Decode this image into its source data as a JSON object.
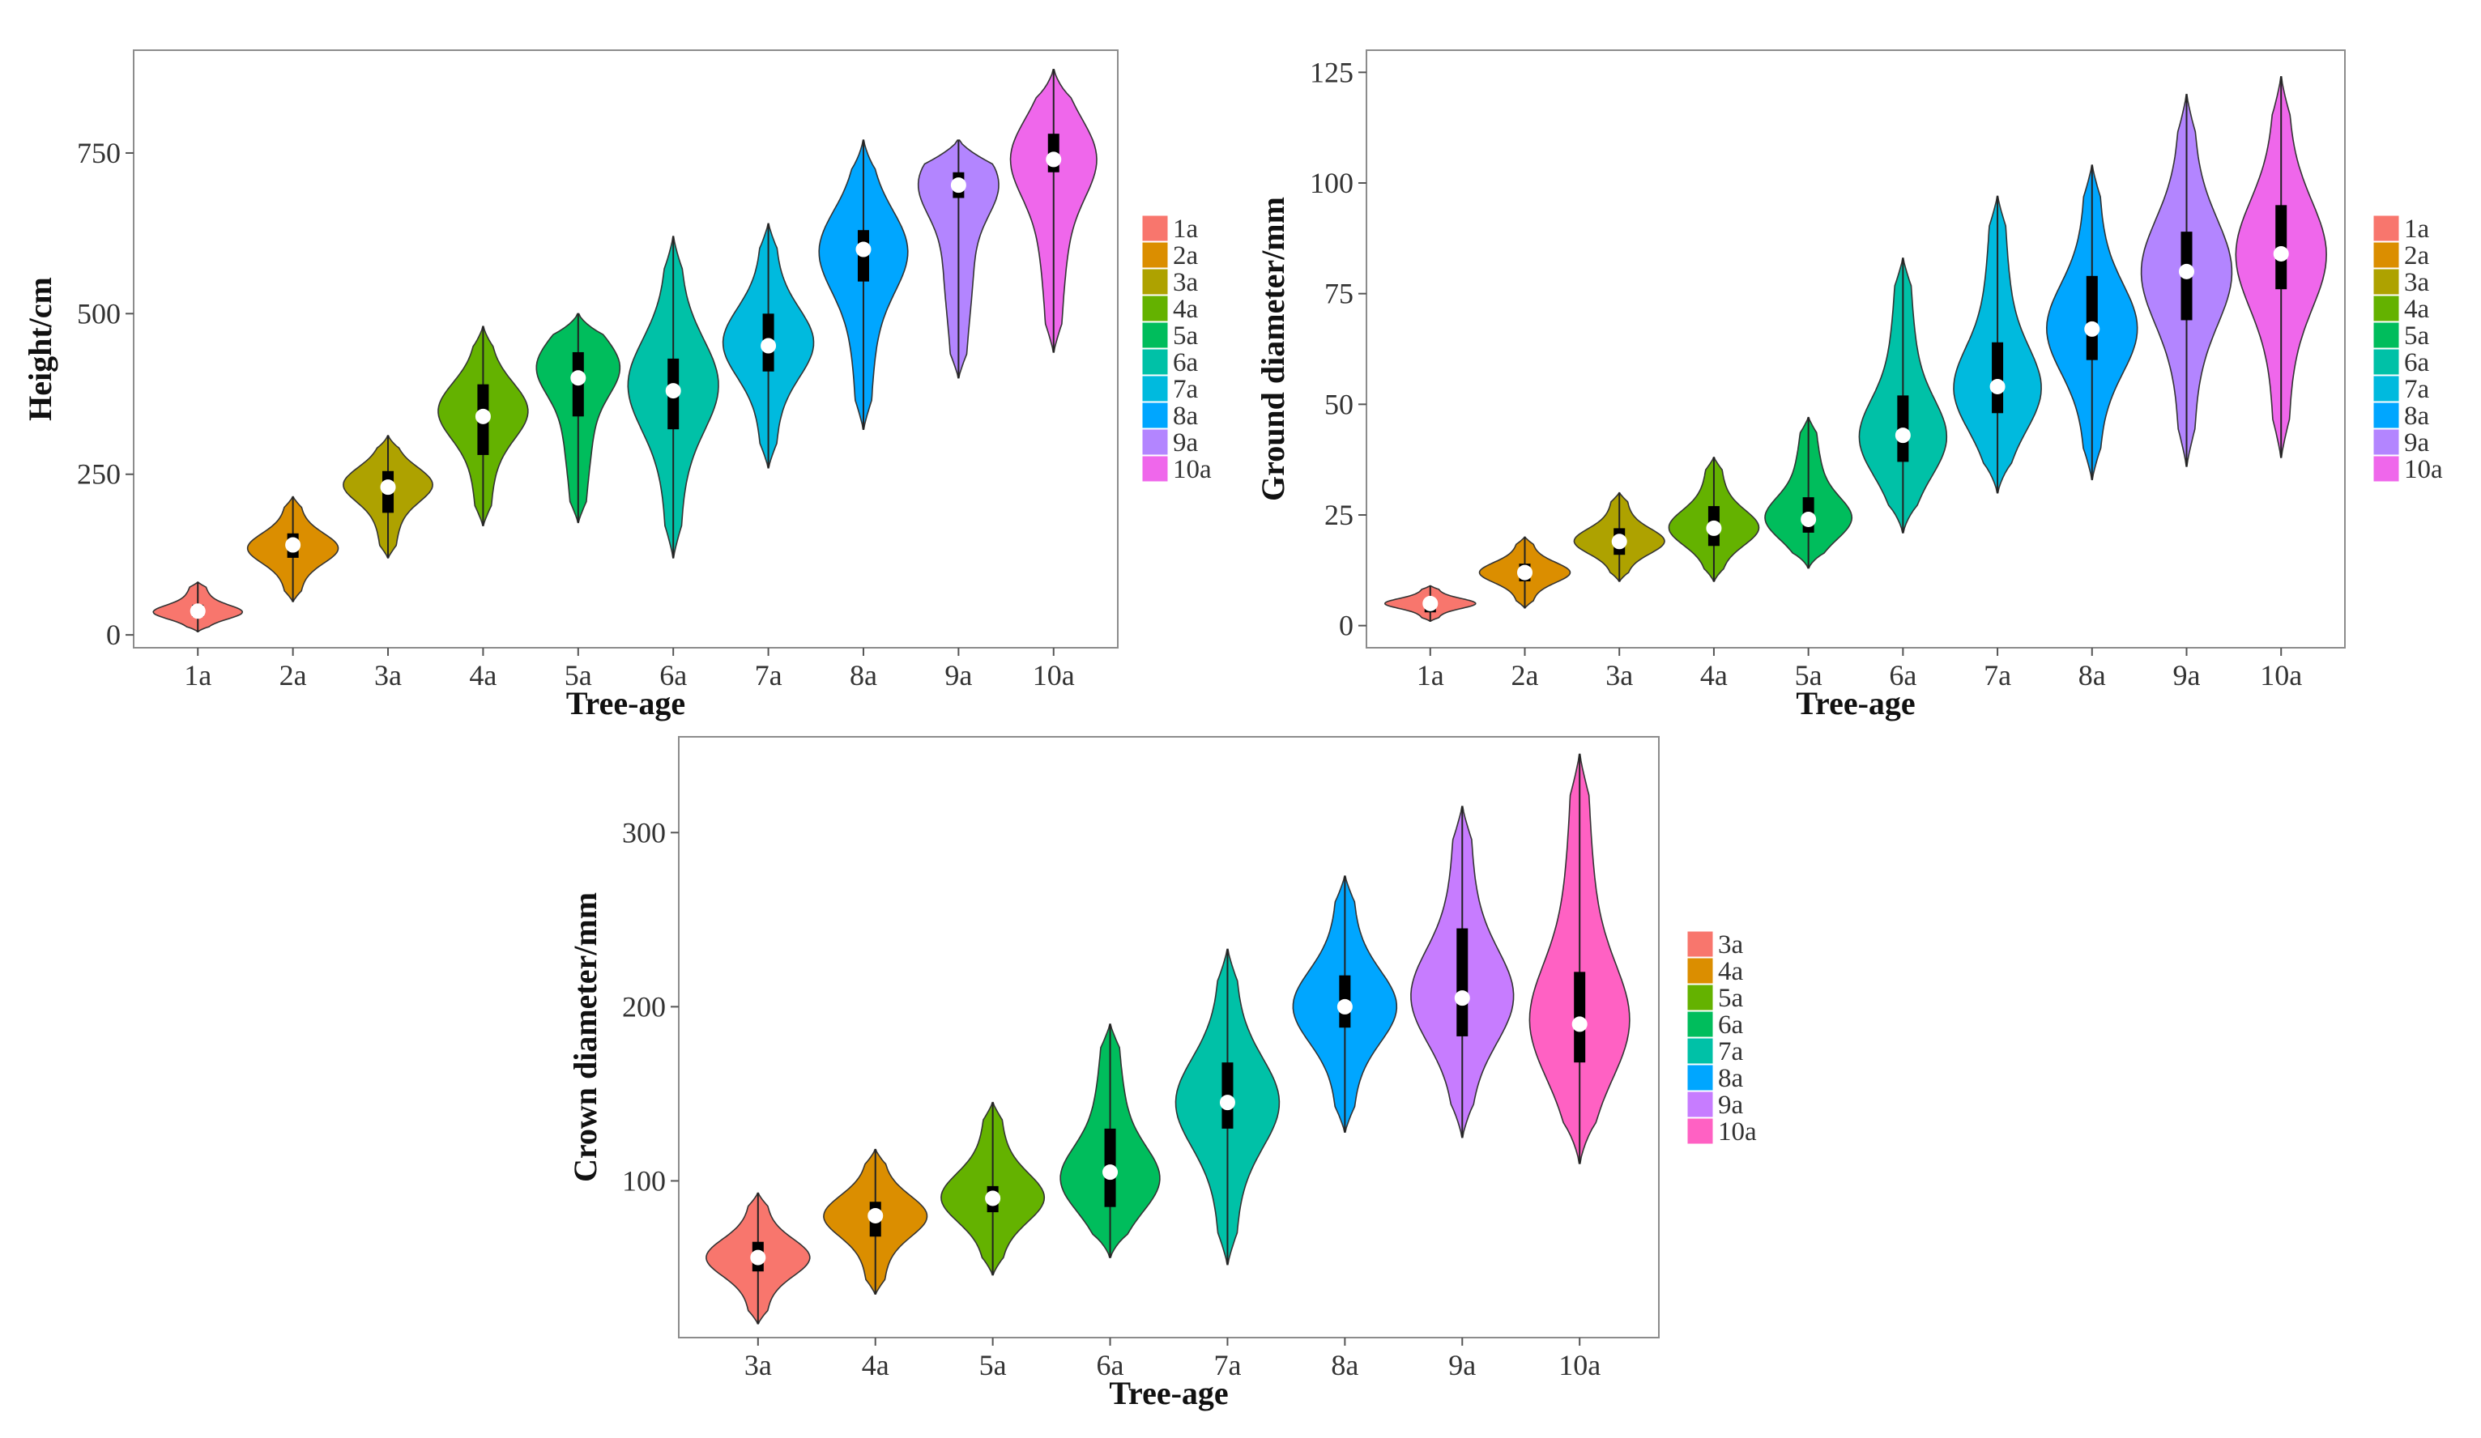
{
  "chart_data": [
    {
      "type": "violin",
      "xlabel": "Tree-age",
      "ylabel": "Height/cm",
      "ylim": [
        -20,
        910
      ],
      "yticks": [
        0,
        250,
        500,
        750
      ],
      "legend": "right",
      "series": [
        {
          "name": "1a",
          "color": "#F8766D",
          "min": 5,
          "max": 82,
          "q1": 28,
          "median": 37,
          "q3": 47,
          "mode": 35
        },
        {
          "name": "2a",
          "color": "#DB8E00",
          "min": 52,
          "max": 215,
          "q1": 120,
          "median": 140,
          "q3": 158,
          "mode": 135
        },
        {
          "name": "3a",
          "color": "#AEA200",
          "min": 120,
          "max": 310,
          "q1": 190,
          "median": 230,
          "q3": 255,
          "mode": 235
        },
        {
          "name": "4a",
          "color": "#64B200",
          "min": 170,
          "max": 480,
          "q1": 280,
          "median": 340,
          "q3": 390,
          "mode": 350
        },
        {
          "name": "5a",
          "color": "#00BD5C",
          "min": 175,
          "max": 500,
          "q1": 340,
          "median": 400,
          "q3": 440,
          "mode": 420
        },
        {
          "name": "6a",
          "color": "#00C1A7",
          "min": 120,
          "max": 620,
          "q1": 320,
          "median": 380,
          "q3": 430,
          "mode": 390
        },
        {
          "name": "7a",
          "color": "#00BADE",
          "min": 260,
          "max": 640,
          "q1": 410,
          "median": 450,
          "q3": 500,
          "mode": 455
        },
        {
          "name": "8a",
          "color": "#00A6FF",
          "min": 320,
          "max": 770,
          "q1": 550,
          "median": 600,
          "q3": 630,
          "mode": 600
        },
        {
          "name": "9a",
          "color": "#B385FF",
          "min": 400,
          "max": 770,
          "q1": 680,
          "median": 700,
          "q3": 720,
          "mode": 705
        },
        {
          "name": "10a",
          "color": "#EF67EB",
          "min": 440,
          "max": 880,
          "q1": 720,
          "median": 740,
          "q3": 780,
          "mode": 745
        }
      ]
    },
    {
      "type": "violin",
      "xlabel": "Tree-age",
      "ylabel": "Ground diameter/mm",
      "ylim": [
        -5,
        130
      ],
      "yticks": [
        0,
        25,
        50,
        75,
        100,
        125
      ],
      "legend": "right",
      "series": [
        {
          "name": "1a",
          "color": "#F8766D",
          "min": 1,
          "max": 9,
          "q1": 3,
          "median": 5,
          "q3": 6,
          "mode": 5
        },
        {
          "name": "2a",
          "color": "#DB8E00",
          "min": 4,
          "max": 20,
          "q1": 10,
          "median": 12,
          "q3": 14,
          "mode": 12
        },
        {
          "name": "3a",
          "color": "#AEA200",
          "min": 10,
          "max": 30,
          "q1": 16,
          "median": 19,
          "q3": 22,
          "mode": 19
        },
        {
          "name": "4a",
          "color": "#64B200",
          "min": 10,
          "max": 38,
          "q1": 18,
          "median": 22,
          "q3": 27,
          "mode": 22
        },
        {
          "name": "5a",
          "color": "#00BD5C",
          "min": 13,
          "max": 47,
          "q1": 21,
          "median": 24,
          "q3": 29,
          "mode": 24
        },
        {
          "name": "6a",
          "color": "#00C1A7",
          "min": 21,
          "max": 83,
          "q1": 37,
          "median": 43,
          "q3": 52,
          "mode": 42
        },
        {
          "name": "7a",
          "color": "#00BADE",
          "min": 30,
          "max": 97,
          "q1": 48,
          "median": 54,
          "q3": 64,
          "mode": 53
        },
        {
          "name": "8a",
          "color": "#00A6FF",
          "min": 33,
          "max": 104,
          "q1": 60,
          "median": 67,
          "q3": 79,
          "mode": 67
        },
        {
          "name": "9a",
          "color": "#B385FF",
          "min": 36,
          "max": 120,
          "q1": 69,
          "median": 80,
          "q3": 89,
          "mode": 80
        },
        {
          "name": "10a",
          "color": "#EF67EB",
          "min": 38,
          "max": 124,
          "q1": 76,
          "median": 84,
          "q3": 95,
          "mode": 84
        }
      ]
    },
    {
      "type": "violin",
      "xlabel": "Tree-age",
      "ylabel": "Crown diameter/mm",
      "ylim": [
        10,
        355
      ],
      "yticks": [
        100,
        200,
        300
      ],
      "legend": "right",
      "series": [
        {
          "name": "3a",
          "color": "#F8766D",
          "min": 18,
          "max": 93,
          "q1": 48,
          "median": 56,
          "q3": 65,
          "mode": 56
        },
        {
          "name": "4a",
          "color": "#DB8E00",
          "min": 35,
          "max": 118,
          "q1": 68,
          "median": 80,
          "q3": 88,
          "mode": 80
        },
        {
          "name": "5a",
          "color": "#64B200",
          "min": 46,
          "max": 145,
          "q1": 82,
          "median": 90,
          "q3": 97,
          "mode": 90
        },
        {
          "name": "6a",
          "color": "#00BD5C",
          "min": 56,
          "max": 190,
          "q1": 85,
          "median": 105,
          "q3": 130,
          "mode": 100
        },
        {
          "name": "7a",
          "color": "#00C1A7",
          "min": 52,
          "max": 233,
          "q1": 130,
          "median": 145,
          "q3": 168,
          "mode": 145
        },
        {
          "name": "8a",
          "color": "#00A6FF",
          "min": 128,
          "max": 275,
          "q1": 188,
          "median": 200,
          "q3": 218,
          "mode": 200
        },
        {
          "name": "9a",
          "color": "#C77CFF",
          "min": 125,
          "max": 315,
          "q1": 183,
          "median": 205,
          "q3": 245,
          "mode": 205
        },
        {
          "name": "10a",
          "color": "#FF61C3",
          "min": 110,
          "max": 345,
          "q1": 168,
          "median": 190,
          "q3": 220,
          "mode": 190
        }
      ]
    }
  ]
}
